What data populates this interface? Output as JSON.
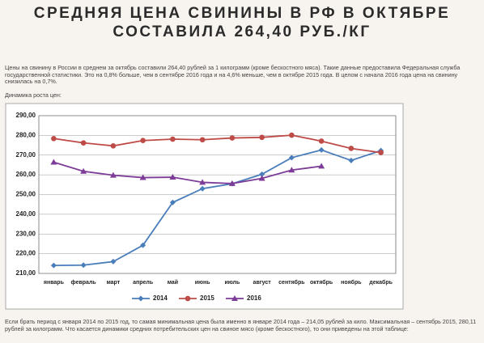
{
  "title_lines": [
    "СРЕДНЯЯ ЦЕНА СВИНИНЫ В РФ В ОКТЯБРЕ",
    "СОСТАВИЛА 264,40 РУБ./КГ"
  ],
  "intro": "Цены на свинину в России в среднем за октябрь составили 264,40 рублей за 1 килограмм (кроме бескостного мяса). Такие данные предоставила Федеральная служба государственной статистики. Это на 0,8% больше, чем в сентябре 2016 года и на 4,6% меньше, чем в октябре 2015 года. В целом с начала 2016 года цена на свинину снизилась на 0,7%.",
  "chart_caption": "Динамика роста цен:",
  "chart_data": {
    "type": "line",
    "categories": [
      "январь",
      "февраль",
      "март",
      "апрель",
      "май",
      "июнь",
      "июль",
      "август",
      "сентябрь",
      "октябрь",
      "ноябрь",
      "декабрь"
    ],
    "series": [
      {
        "name": "2014",
        "color": "#4a7ebb",
        "marker": "diamond",
        "values": [
          214.05,
          214.2,
          216,
          224.3,
          246,
          253,
          255.5,
          260.3,
          268.7,
          272.6,
          267.3,
          272.3
        ]
      },
      {
        "name": "2015",
        "color": "#be4b48",
        "marker": "circle",
        "values": [
          278.4,
          276.2,
          274.7,
          277.4,
          278.1,
          277.8,
          278.7,
          279,
          280.11,
          277.1,
          273.4,
          271.3
        ]
      },
      {
        "name": "2016",
        "color": "#7d3c98",
        "marker": "triangle",
        "values": [
          266.4,
          261.8,
          259.8,
          258.6,
          258.8,
          256.2,
          255.6,
          258.2,
          262.4,
          264.4,
          null,
          null
        ]
      }
    ],
    "ylim": [
      210,
      290
    ],
    "yticks": [
      {
        "value": 210,
        "label": "210,00"
      },
      {
        "value": 220,
        "label": "220,00"
      },
      {
        "value": 230,
        "label": "230,00"
      },
      {
        "value": 240,
        "label": "240,00"
      },
      {
        "value": 250,
        "label": "250,00"
      },
      {
        "value": 260,
        "label": "260,00"
      },
      {
        "value": 270,
        "label": "270,00"
      },
      {
        "value": 280,
        "label": "280,00"
      },
      {
        "value": 290,
        "label": "290,00"
      }
    ],
    "grid": true,
    "legend": "bottom"
  },
  "footer": "Если брать период с января 2014 по 2015 год, то самая минимальная цена была именно в январе 2014 года – 214,05 рублей за кило. Максимальная – сентябрь 2015, 280,11 рублей за килограмм. Что касается динамики средних потребительских цен на свиное мясо (кроме бескостного), то они приведены на этой таблице:"
}
